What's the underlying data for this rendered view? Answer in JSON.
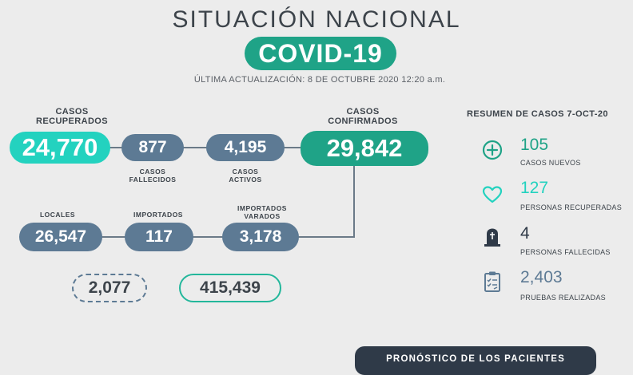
{
  "header": {
    "title": "SITUACIÓN NACIONAL",
    "badge": "COVID-19",
    "updated": "ÚLTIMA ACTUALIZACIÓN: 8 DE OCTUBRE 2020 12:20 a.m."
  },
  "stats": {
    "recuperados": {
      "label": "CASOS RECUPERADOS",
      "value": "24,770"
    },
    "fallecidos": {
      "label": "CASOS FALLECIDOS",
      "value": "877"
    },
    "activos": {
      "label": "CASOS ACTIVOS",
      "value": "4,195"
    },
    "confirmados": {
      "label": "CASOS CONFIRMADOS",
      "value": "29,842"
    },
    "locales": {
      "label": "LOCALES",
      "value": "26,547"
    },
    "importados": {
      "label": "IMPORTADOS",
      "value": "117"
    },
    "varados": {
      "label": "IMPORTADOS VARADOS",
      "value": "3,178"
    },
    "extra_dashed": {
      "value": "2,077"
    },
    "extra_outline": {
      "value": "415,439"
    }
  },
  "summary": {
    "title": "RESUMEN DE CASOS 7-OCT-20",
    "items": [
      {
        "icon": "plus-circle-icon",
        "value": "105",
        "label": "CASOS NUEVOS",
        "color": "#1fa387"
      },
      {
        "icon": "heart-icon",
        "value": "127",
        "label": "PERSONAS RECUPERADAS",
        "color": "#23d2bf"
      },
      {
        "icon": "tombstone-icon",
        "value": "4",
        "label": "PERSONAS FALLECIDAS",
        "color": "#2f3a48"
      },
      {
        "icon": "clipboard-icon",
        "value": "2,403",
        "label": "PRUEBAS REALIZADAS",
        "color": "#5d7a94"
      }
    ]
  },
  "footer": {
    "button": "PRONÓSTICO DE LOS PACIENTES"
  },
  "colors": {
    "teal": "#23d2bf",
    "green": "#1fa387",
    "slate": "#5d7a94",
    "dark": "#2f3a48",
    "background": "#ececec"
  }
}
